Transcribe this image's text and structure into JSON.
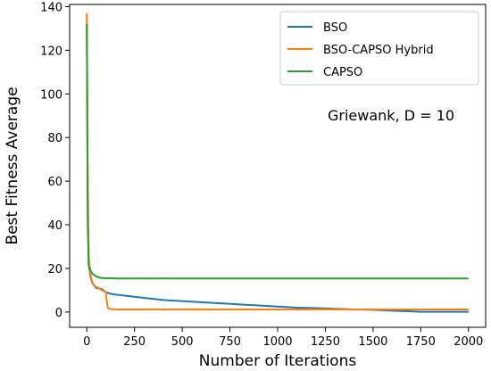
{
  "chart_data": {
    "type": "line",
    "xlabel": "Number of Iterations",
    "ylabel": "Best Fitness Average",
    "annotation": "Griewank, D = 10",
    "xlim": [
      -90,
      2090
    ],
    "ylim": [
      -7,
      141
    ],
    "xticks": [
      0,
      250,
      500,
      750,
      1000,
      1250,
      1500,
      1750,
      2000
    ],
    "yticks": [
      0,
      20,
      40,
      60,
      80,
      100,
      120,
      140
    ],
    "legend_position": "top-right",
    "grid": false,
    "series": [
      {
        "name": "BSO",
        "color": "#1f77b4",
        "x": [
          0,
          5,
          10,
          20,
          30,
          50,
          80,
          100,
          120,
          150,
          200,
          250,
          300,
          400,
          500,
          600,
          700,
          800,
          900,
          1000,
          1100,
          1200,
          1300,
          1400,
          1500,
          1600,
          1700,
          1750,
          1800,
          1900,
          2000
        ],
        "y": [
          132,
          50,
          22,
          16,
          13,
          11,
          10.5,
          9,
          8.5,
          8,
          7.5,
          7,
          6.5,
          5.5,
          5,
          4.5,
          4,
          3.5,
          3,
          2.5,
          2,
          1.8,
          1.5,
          1.2,
          1,
          0.6,
          0.3,
          0.1,
          0.1,
          0.1,
          0.1
        ]
      },
      {
        "name": "BSO-CAPSO Hybrid",
        "color": "#ff7f0e",
        "x": [
          0,
          5,
          10,
          20,
          30,
          50,
          80,
          100,
          105,
          110,
          120,
          150,
          200,
          300,
          500,
          1000,
          1500,
          2000
        ],
        "y": [
          137,
          60,
          25,
          17,
          13,
          11.5,
          10,
          9,
          5,
          2,
          1.4,
          1.2,
          1.2,
          1.2,
          1.2,
          1.2,
          1.2,
          1.2
        ]
      },
      {
        "name": "CAPSO",
        "color": "#2ca02c",
        "x": [
          0,
          5,
          10,
          20,
          30,
          50,
          70,
          100,
          150,
          200,
          500,
          1000,
          1500,
          2000
        ],
        "y": [
          132,
          40,
          21,
          19,
          17.5,
          16.3,
          15.7,
          15.5,
          15.4,
          15.4,
          15.4,
          15.4,
          15.4,
          15.4
        ]
      }
    ]
  }
}
